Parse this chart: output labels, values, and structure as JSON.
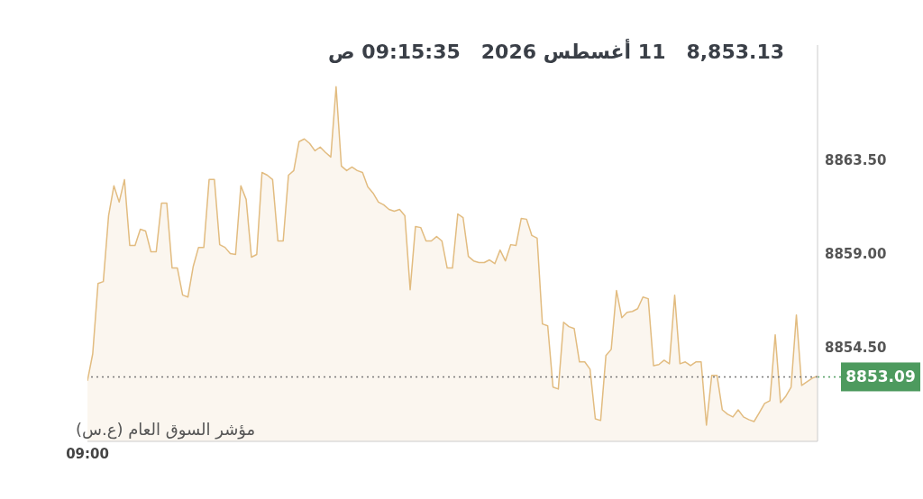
{
  "chart_data": {
    "type": "area",
    "title": "8,853.13   11 أغسطس 2026   09:15:35 ص",
    "annotations": [
      "مؤشر السوق العام (ع.س)"
    ],
    "categories": [
      "09:00",
      null,
      null,
      null,
      null,
      null,
      null,
      null,
      null,
      null,
      null,
      null,
      null,
      null,
      null,
      null,
      null,
      null,
      null,
      null,
      null,
      null,
      null,
      null,
      null,
      null,
      null,
      null,
      null,
      null,
      null,
      null,
      null,
      null,
      null,
      null,
      null,
      null,
      null,
      null,
      null,
      null,
      null,
      null,
      null,
      null,
      null,
      null,
      null,
      null,
      null,
      null,
      null,
      null,
      null,
      null,
      null,
      null,
      null,
      null,
      null,
      null,
      null,
      null,
      null,
      null,
      null,
      null,
      null,
      null,
      null,
      null,
      null,
      null,
      null,
      null,
      null,
      null,
      null,
      null,
      null,
      null,
      null,
      null,
      null,
      null,
      null,
      null,
      null,
      null,
      null,
      null,
      null,
      null,
      null,
      null,
      null,
      null,
      null,
      null,
      null,
      null,
      null,
      null,
      null,
      null,
      null,
      null,
      null,
      null,
      null,
      null,
      null,
      null,
      null,
      null,
      null,
      null,
      null,
      null,
      null,
      null,
      null,
      null,
      null,
      null,
      null,
      null,
      null,
      null,
      null,
      null,
      null,
      null,
      null,
      null,
      null,
      null,
      null
    ],
    "series": [
      {
        "color": "#e2bc80",
        "values": [
          8852.9,
          8854.2,
          8857.57,
          8857.66,
          8860.82,
          8862.25,
          8861.47,
          8862.55,
          8859.39,
          8859.39,
          8860.17,
          8860.08,
          8859.09,
          8859.09,
          8861.42,
          8861.42,
          8858.31,
          8858.31,
          8857.01,
          8856.92,
          8858.39,
          8859.3,
          8859.3,
          8862.55,
          8862.55,
          8859.43,
          8859.3,
          8859.0,
          8858.96,
          8862.25,
          8861.6,
          8858.83,
          8858.96,
          8862.89,
          8862.76,
          8862.55,
          8859.61,
          8859.61,
          8862.76,
          8862.98,
          8864.37,
          8864.5,
          8864.28,
          8863.93,
          8864.11,
          8863.85,
          8863.63,
          8867.0,
          8863.2,
          8862.98,
          8863.15,
          8862.98,
          8862.89,
          8862.2,
          8861.9,
          8861.47,
          8861.34,
          8861.12,
          8861.03,
          8861.12,
          8860.82,
          8857.27,
          8860.3,
          8860.25,
          8859.61,
          8859.61,
          8859.82,
          8859.61,
          8858.31,
          8858.31,
          8860.9,
          8860.73,
          8858.87,
          8858.65,
          8858.57,
          8858.57,
          8858.7,
          8858.52,
          8859.17,
          8858.65,
          8859.43,
          8859.39,
          8860.69,
          8860.65,
          8859.87,
          8859.74,
          8855.63,
          8855.54,
          8852.6,
          8852.51,
          8855.71,
          8855.5,
          8855.41,
          8853.81,
          8853.81,
          8853.46,
          8851.08,
          8851.0,
          8854.11,
          8854.41,
          8857.23,
          8855.93,
          8856.19,
          8856.23,
          8856.36,
          8856.92,
          8856.84,
          8853.63,
          8853.68,
          8853.89,
          8853.72,
          8857.01,
          8853.72,
          8853.81,
          8853.63,
          8853.81,
          8853.81,
          8850.78,
          8853.16,
          8853.16,
          8851.51,
          8851.3,
          8851.17,
          8851.51,
          8851.17,
          8851.04,
          8850.95,
          8851.38,
          8851.82,
          8851.95,
          8855.11,
          8851.86,
          8852.16,
          8852.6,
          8856.06,
          8852.68,
          8852.86,
          8853.03,
          8853.13
        ]
      }
    ],
    "ylim": [
      8850,
      8869
    ],
    "yticks": [
      {
        "value": 8854.5,
        "label": "8854.50"
      },
      {
        "value": 8859,
        "label": "8859.00"
      },
      {
        "value": 8863.5,
        "label": "8863.50"
      }
    ],
    "ref_lines": [
      {
        "axis": "y",
        "value": 8853.09,
        "label": "8853.09",
        "color": "#4d9a5e",
        "line_style": "dotted"
      }
    ],
    "grid": false,
    "legend": false,
    "marker": "none"
  }
}
